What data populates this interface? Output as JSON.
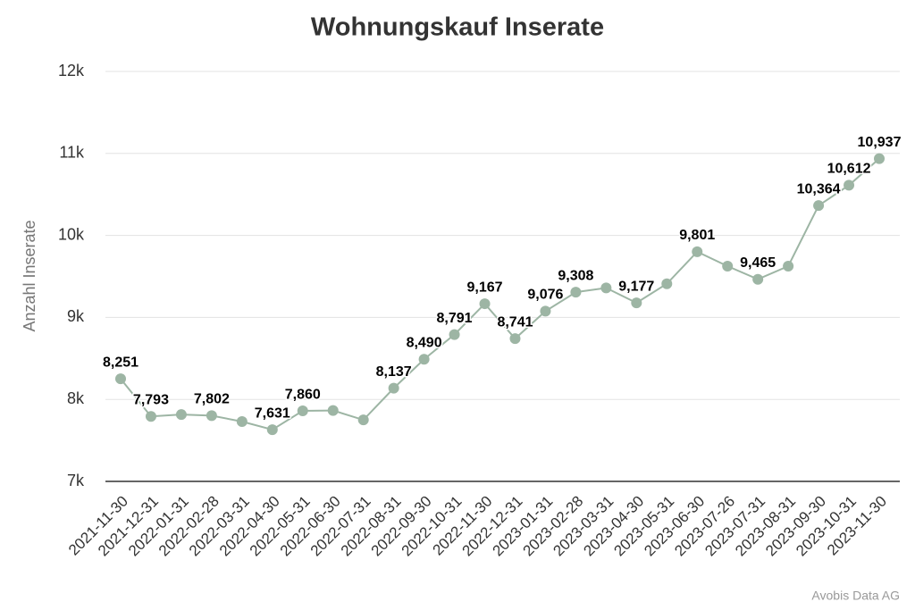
{
  "chart_data": {
    "type": "line",
    "title": "Wohnungskauf Inserate",
    "y_label": "Anzahl Inserate",
    "source": "Avobis Data AG",
    "categories": [
      "2021-11-30",
      "2021-12-31",
      "2022-01-31",
      "2022-02-28",
      "2022-03-31",
      "2022-04-30",
      "2022-05-31",
      "2022-06-30",
      "2022-07-31",
      "2022-08-31",
      "2022-09-30",
      "2022-10-31",
      "2022-11-30",
      "2022-12-31",
      "2023-01-31",
      "2023-02-28",
      "2023-03-31",
      "2023-04-30",
      "2023-05-31",
      "2023-06-30",
      "2023-07-26",
      "2023-07-31",
      "2023-08-31",
      "2023-09-30",
      "2023-10-31",
      "2023-11-30"
    ],
    "series": [
      {
        "color": "#9db5a4",
        "values": [
          8251,
          7793,
          7815,
          7802,
          7730,
          7631,
          7860,
          7865,
          7750,
          8137,
          8490,
          8791,
          9167,
          8741,
          9076,
          9308,
          9360,
          9177,
          9410,
          9801,
          9625,
          9465,
          9625,
          10364,
          10612,
          10937
        ],
        "value_labels": [
          "8,251",
          "7,793",
          null,
          "7,802",
          null,
          "7,631",
          "7,860",
          null,
          null,
          "8,137",
          "8,490",
          "8,791",
          "9,167",
          "8,741",
          "9,076",
          "9,308",
          null,
          "9,177",
          null,
          "9,801",
          null,
          "9,465",
          null,
          "10,364",
          "10,612",
          "10,937"
        ]
      }
    ],
    "ylim": [
      7000,
      12000
    ],
    "yticks": [
      {
        "value": 7000,
        "label": "7k"
      },
      {
        "value": 8000,
        "label": "8k"
      },
      {
        "value": 9000,
        "label": "9k"
      },
      {
        "value": 10000,
        "label": "10k"
      },
      {
        "value": 11000,
        "label": "11k"
      },
      {
        "value": 12000,
        "label": "12k"
      }
    ],
    "grid": true
  }
}
